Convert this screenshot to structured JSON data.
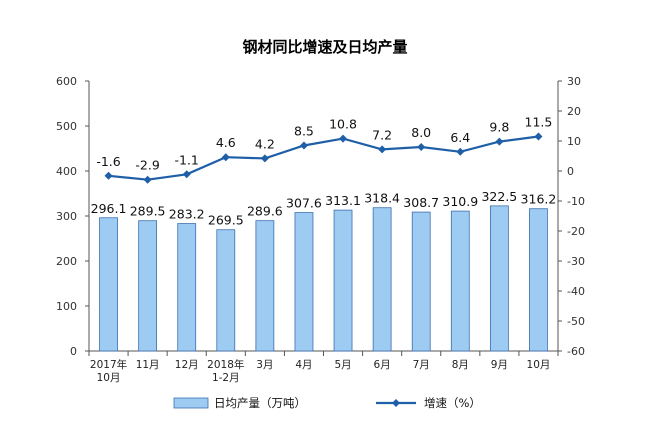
{
  "chart_data": {
    "type": "bar+line",
    "title": "钢材同比增速及日均产量",
    "categories": [
      [
        "2017年",
        "10月"
      ],
      [
        "11月"
      ],
      [
        "12月"
      ],
      [
        "2018年",
        "1-2月"
      ],
      [
        "3月"
      ],
      [
        "4月"
      ],
      [
        "5月"
      ],
      [
        "6月"
      ],
      [
        "7月"
      ],
      [
        "8月"
      ],
      [
        "9月"
      ],
      [
        "10月"
      ]
    ],
    "series": [
      {
        "name": "日均产量（万吨）",
        "type": "bar",
        "axis": "left",
        "color": "#9ecbf2",
        "values": [
          296.1,
          289.5,
          283.2,
          269.5,
          289.6,
          307.6,
          313.1,
          318.4,
          308.7,
          310.9,
          322.5,
          316.2
        ],
        "labels": [
          "296.1",
          "289.5",
          "283.2",
          "269.5",
          "289.6",
          "307.6",
          "313.1",
          "318.4",
          "308.7",
          "310.9",
          "322.5",
          "316.2"
        ]
      },
      {
        "name": "增速（%）",
        "type": "line",
        "axis": "right",
        "color": "#1f5fa8",
        "values": [
          -1.6,
          -2.9,
          -1.1,
          4.6,
          4.2,
          8.5,
          10.8,
          7.2,
          8.0,
          6.4,
          9.8,
          11.5
        ],
        "labels": [
          "-1.6",
          "-2.9",
          "-1.1",
          "4.6",
          "4.2",
          "8.5",
          "10.8",
          "7.2",
          "8.0",
          "6.4",
          "9.8",
          "11.5"
        ]
      }
    ],
    "y_left": {
      "min": 0,
      "max": 600,
      "step": 100,
      "ticks": [
        "0",
        "100",
        "200",
        "300",
        "400",
        "500",
        "600"
      ]
    },
    "y_right": {
      "min": -60,
      "max": 30,
      "step": 10,
      "ticks": [
        "-60",
        "-50",
        "-40",
        "-30",
        "-20",
        "-10",
        "0",
        "10",
        "20",
        "30"
      ]
    },
    "legend": {
      "position": "bottom",
      "items": [
        "日均产量（万吨）",
        "增速（%）"
      ]
    },
    "grid": false
  }
}
